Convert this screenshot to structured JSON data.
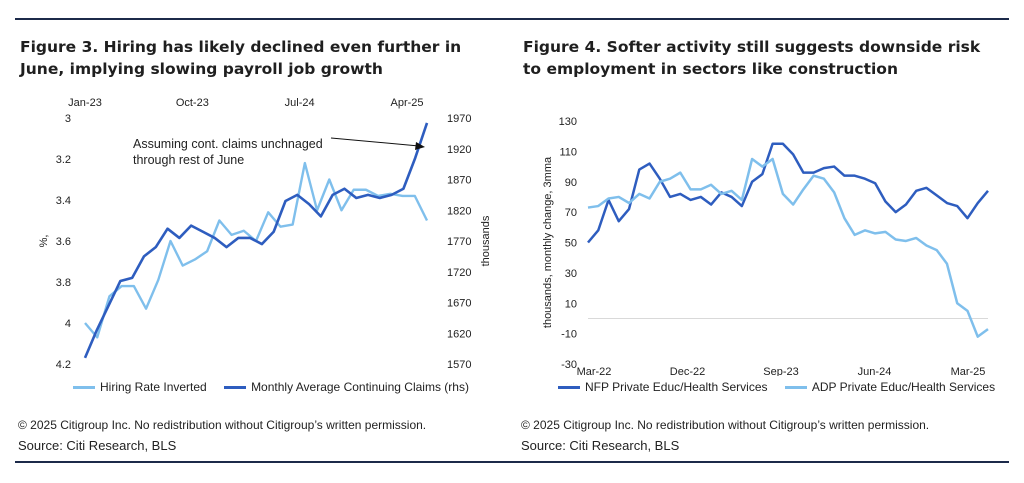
{
  "chart_data": [
    {
      "id": "figure-3",
      "type": "line",
      "title": "Figure 3. Hiring has likely declined even further in June, implying slowing payroll job growth",
      "x_ticks": [
        "Jan-23",
        "Oct-23",
        "Jul-24",
        "Apr-25"
      ],
      "ylabel": "%,",
      "ylabel_right": "thousands",
      "y_ticks": [
        "3",
        "3.2",
        "3.4",
        "3.6",
        "3.8",
        "4",
        "4.2"
      ],
      "ylim": [
        3,
        4.2
      ],
      "y_inverted": true,
      "y2_ticks": [
        "1970",
        "1920",
        "1870",
        "1820",
        "1770",
        "1720",
        "1670",
        "1620",
        "1570"
      ],
      "y2lim": [
        1570,
        1970
      ],
      "annotation": [
        "Assuming cont. claims unchnaged",
        "through rest of June"
      ],
      "series": [
        {
          "name": "Hiring Rate Inverted",
          "axis": "left",
          "color": "#7fbfec",
          "values": [
            4.0,
            4.07,
            3.87,
            3.82,
            3.82,
            3.93,
            3.79,
            3.6,
            3.72,
            3.69,
            3.65,
            3.5,
            3.57,
            3.55,
            3.6,
            3.46,
            3.53,
            3.52,
            3.22,
            3.45,
            3.3,
            3.45,
            3.35,
            3.35,
            3.38,
            3.37,
            3.38,
            3.38,
            3.5
          ]
        },
        {
          "name": "Monthly Average Continuing Claims (rhs)",
          "axis": "right",
          "color": "#2e5dbf",
          "values": [
            1580,
            1625,
            1665,
            1705,
            1710,
            1745,
            1760,
            1790,
            1775,
            1795,
            1785,
            1775,
            1760,
            1775,
            1775,
            1765,
            1785,
            1835,
            1845,
            1830,
            1810,
            1845,
            1855,
            1840,
            1845,
            1840,
            1845,
            1855,
            1905,
            1962
          ]
        }
      ]
    },
    {
      "id": "figure-4",
      "type": "line",
      "title": "Figure 4. Softer activity still suggests downside risk to employment in sectors like construction",
      "x_ticks": [
        "Mar-22",
        "Dec-22",
        "Sep-23",
        "Jun-24",
        "Mar-25"
      ],
      "ylabel": "thousands, monthly change, 3mma",
      "y_ticks": [
        "130",
        "110",
        "90",
        "70",
        "50",
        "30",
        "10",
        "-10",
        "-30"
      ],
      "ylim": [
        -30,
        130
      ],
      "series": [
        {
          "name": "NFP Private Educ/Health Services",
          "color": "#2e5dbf",
          "values": [
            50,
            58,
            78,
            64,
            72,
            98,
            102,
            92,
            80,
            82,
            78,
            80,
            75,
            83,
            80,
            74,
            90,
            95,
            115,
            115,
            108,
            96,
            96,
            99,
            100,
            94,
            94,
            92,
            89,
            77,
            70,
            75,
            84,
            86,
            81,
            76,
            74,
            66,
            76,
            84
          ]
        },
        {
          "name": "ADP Private Educ/Health Services",
          "color": "#7fbfec",
          "values": [
            73,
            74,
            79,
            80,
            76,
            82,
            79,
            90,
            92,
            96,
            85,
            85,
            88,
            82,
            84,
            78,
            105,
            100,
            105,
            82,
            75,
            85,
            94,
            92,
            83,
            66,
            55,
            58,
            56,
            57,
            52,
            51,
            53,
            48,
            45,
            36,
            10,
            5,
            -12,
            -7
          ]
        }
      ]
    }
  ],
  "notes": {
    "copyright_left": "© 2025 Citigroup Inc. No redistribution without Citigroup’s written permission.",
    "source_left": "Source: Citi Research, BLS",
    "copyright_right": "© 2025 Citigroup Inc. No redistribution without Citigroup’s written permission.",
    "source_right": "Source: Citi Research, BLS"
  },
  "colors": {
    "rule": "#1c2a4a",
    "gridline": "#d9d9d9"
  }
}
